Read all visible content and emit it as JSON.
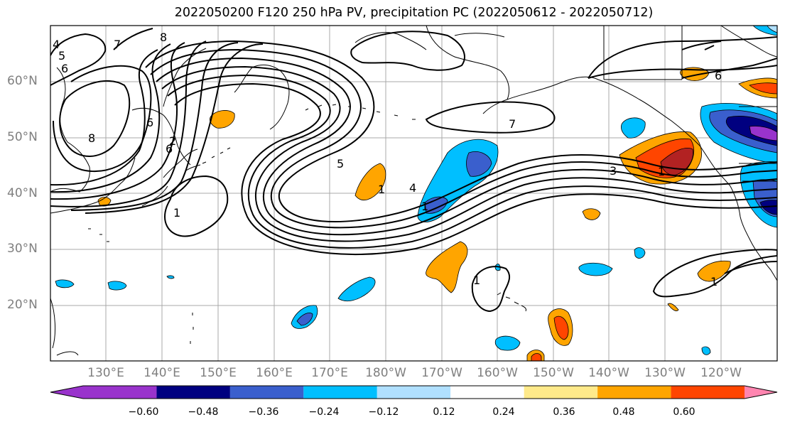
{
  "title": "2022050200 F120 250 hPa PV, precipitation PC (2022050612 - 2022050712)",
  "map": {
    "lat_labels": [
      "60°N",
      "50°N",
      "40°N",
      "30°N",
      "20°N"
    ],
    "lon_labels": [
      "130°E",
      "140°E",
      "150°E",
      "160°E",
      "170°E",
      "180°W",
      "170°W",
      "160°W",
      "150°W",
      "140°W",
      "130°W",
      "120°W"
    ],
    "contour_labels": [
      "4",
      "5",
      "6",
      "7",
      "8",
      "6",
      "8",
      "6",
      "2",
      "1",
      "5",
      "1",
      "1",
      "4",
      "7",
      "3",
      "1",
      "6",
      "1",
      "1"
    ],
    "contour_color": "#000000",
    "coastline_color": "#000000",
    "grid_color": "#a8a8a8"
  },
  "colorbar": {
    "ticks": [
      "−0.60",
      "−0.48",
      "−0.36",
      "−0.24",
      "−0.12",
      "0.12",
      "0.24",
      "0.36",
      "0.48",
      "0.60"
    ],
    "colors": [
      "#9933cc",
      "#000080",
      "#3a5fcd",
      "#00bfff",
      "#b0e0ff",
      "#ffffff",
      "#ffea8a",
      "#ffa500",
      "#ff4500",
      "#b22222",
      "#ff85b0"
    ]
  }
}
